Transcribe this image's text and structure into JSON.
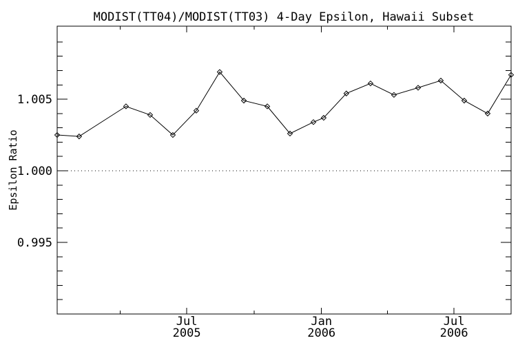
{
  "chart_data": {
    "type": "line",
    "title": "MODIST(TT04)/MODIST(TT03) 4-Day Epsilon, Hawaii Subset",
    "xlabel": "",
    "ylabel": "Epsilon Ratio",
    "background_color": "#ffffff",
    "line_color": "#000000",
    "marker": "open-diamond",
    "grid": false,
    "legend": "none",
    "x_days_since_2005_01_01": [
      4,
      34,
      98,
      131,
      162,
      194,
      226,
      259,
      291,
      322,
      354,
      368,
      399,
      432,
      464,
      497,
      528,
      560,
      592,
      624
    ],
    "values": [
      1.0025,
      1.0024,
      1.0045,
      1.0039,
      1.0025,
      1.0042,
      1.0069,
      1.0049,
      1.0045,
      1.0026,
      1.0034,
      1.0037,
      1.0054,
      1.0061,
      1.0053,
      1.0058,
      1.0063,
      1.0049,
      1.004,
      1.0067
    ],
    "xlim_days": [
      4,
      624
    ],
    "ylim": [
      0.99,
      1.0101
    ],
    "x_major_ticks": [
      {
        "day": 181,
        "month": "Jul",
        "year": "2005"
      },
      {
        "day": 365,
        "month": "Jan",
        "year": "2006"
      },
      {
        "day": 546,
        "month": "Jul",
        "year": "2006"
      }
    ],
    "x_minor_tick_days": [
      90,
      273,
      455
    ],
    "y_major_ticks": [
      {
        "value": 0.995,
        "label": "0.995"
      },
      {
        "value": 1.0,
        "label": "1.000"
      },
      {
        "value": 1.005,
        "label": "1.005"
      }
    ],
    "y_minor_tick_step": 0.001,
    "reference_line": {
      "value": 1.0,
      "style": "dotted"
    }
  }
}
